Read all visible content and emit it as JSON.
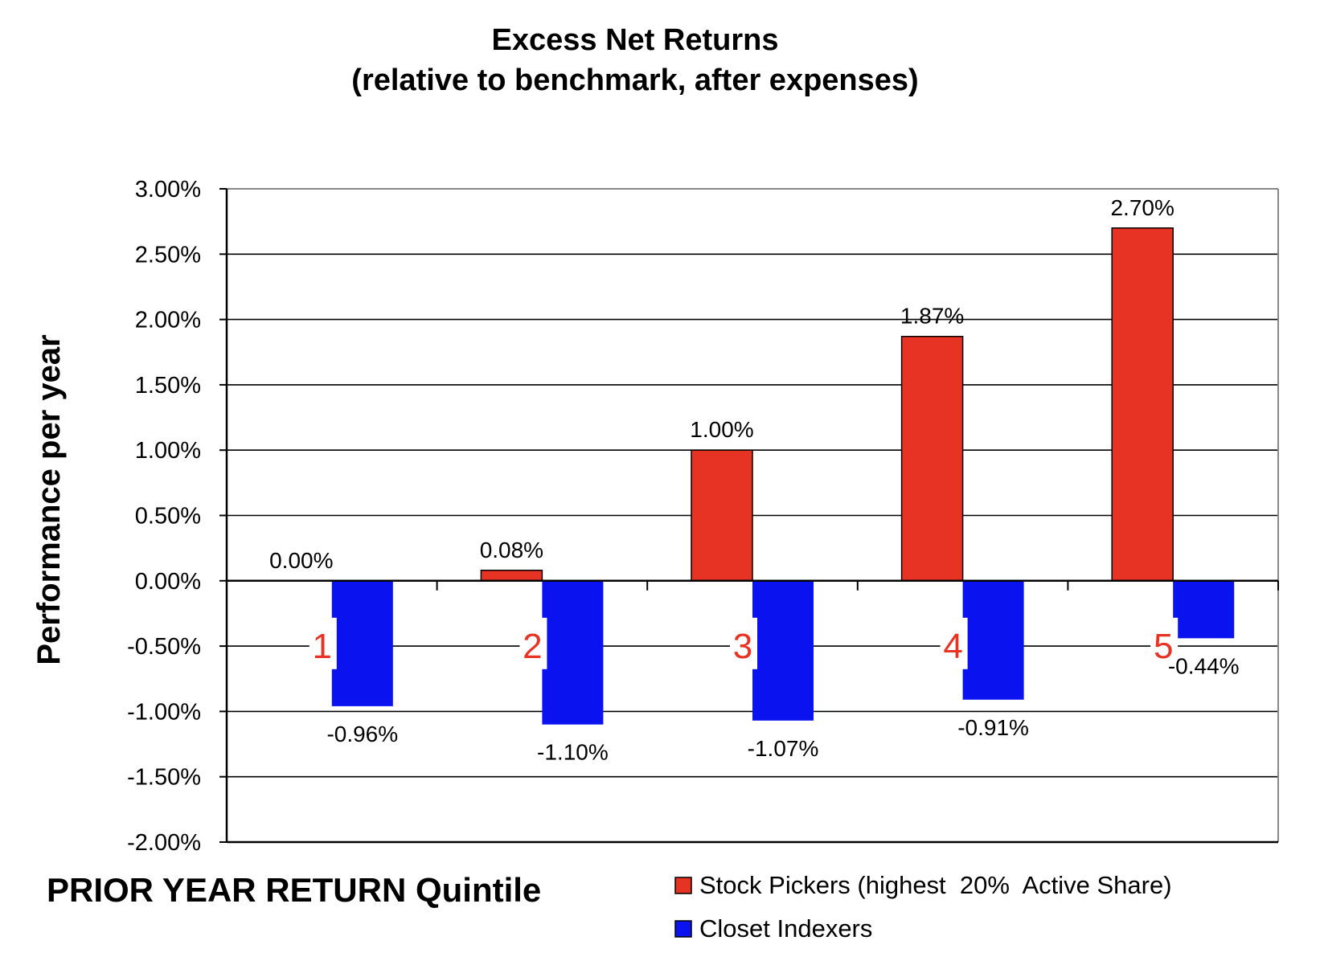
{
  "chart_data": {
    "type": "bar",
    "title": "Excess Net Returns",
    "subtitle": "(relative to  benchmark, after expenses)",
    "ylabel": "Performance per year",
    "xlabel": "PRIOR YEAR RETURN Quintile",
    "categories": [
      "1",
      "2",
      "3",
      "4",
      "5"
    ],
    "ylim": [
      -2.0,
      3.0
    ],
    "yticks": [
      3.0,
      2.5,
      2.0,
      1.5,
      1.0,
      0.5,
      0.0,
      -0.5,
      -1.0,
      -1.5,
      -2.0
    ],
    "ytick_labels": [
      "3.00%",
      "2.50%",
      "2.00%",
      "1.50%",
      "1.00%",
      "0.50%",
      "0.00%",
      "-0.50%",
      "-1.00%",
      "-1.50%",
      "-2.00%"
    ],
    "grid": true,
    "legend_position": "bottom-right",
    "series": [
      {
        "name": "Stock Pickers (highest  20%  Active Share)",
        "color": "#e63323",
        "values": [
          0.0,
          0.08,
          1.0,
          1.87,
          2.7
        ],
        "labels": [
          "0.00%",
          "0.08%",
          "1.00%",
          "1.87%",
          "2.70%"
        ]
      },
      {
        "name": "Closet Indexers",
        "color": "#0b12f0",
        "values": [
          -0.96,
          -1.1,
          -1.07,
          -0.91,
          -0.44
        ],
        "labels": [
          "-0.96%",
          "-1.10%",
          "-1.07%",
          "-0.91%",
          "-0.44%"
        ]
      }
    ],
    "category_label_color": "#e63323"
  }
}
